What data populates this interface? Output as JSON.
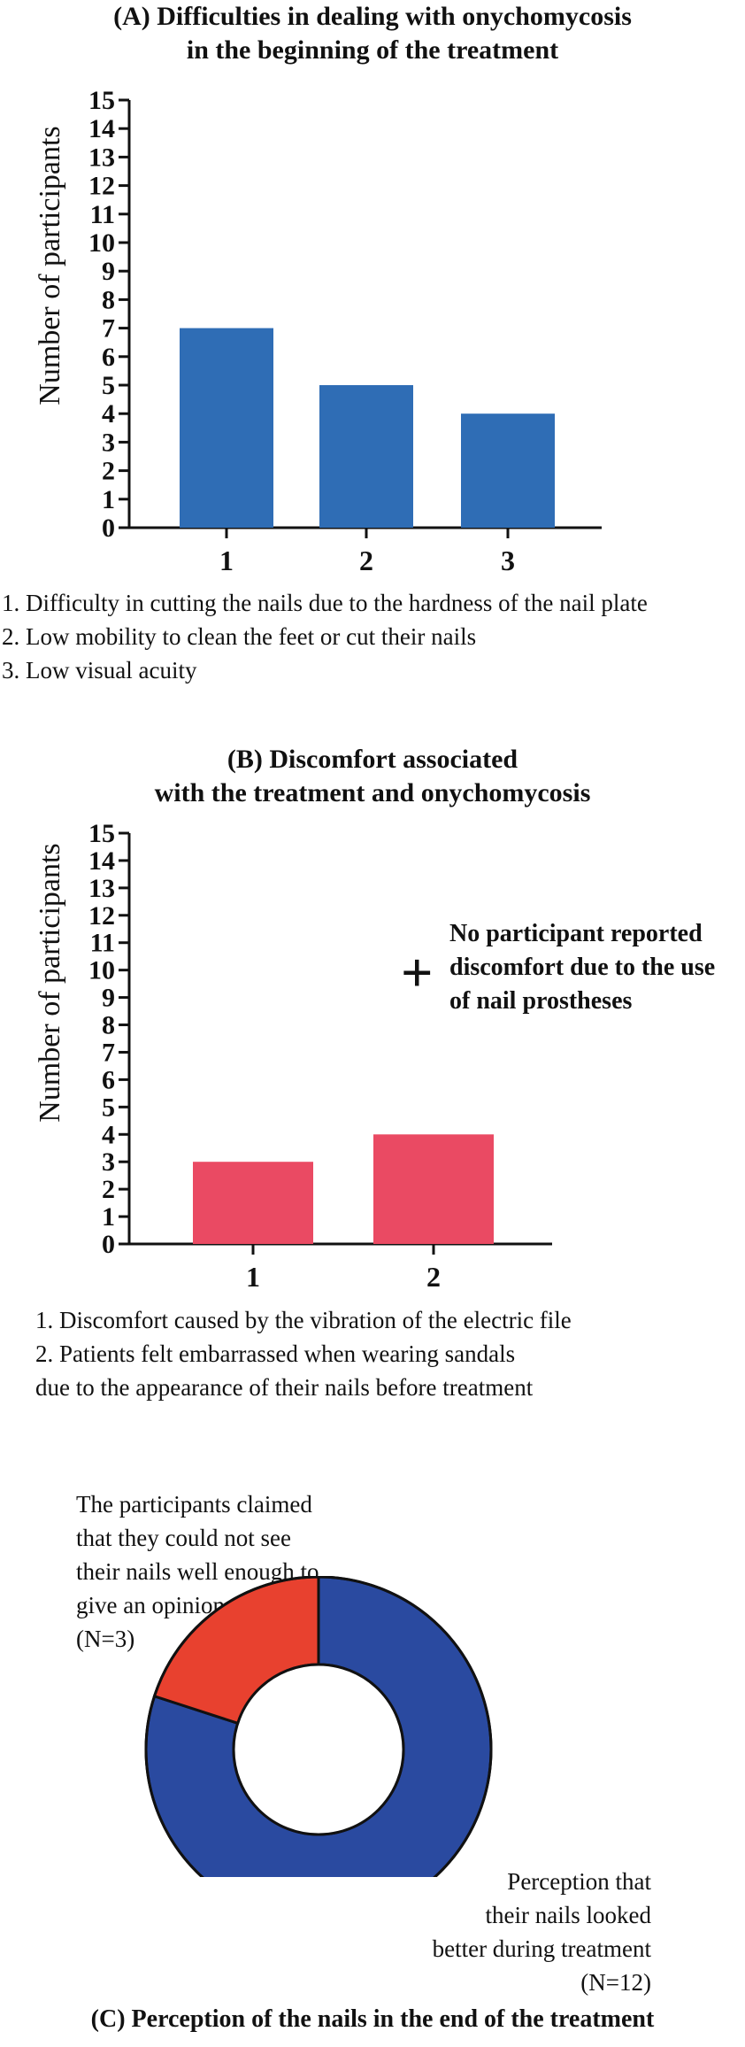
{
  "chart_data": [
    {
      "type": "bar",
      "title_line1": "(A) Difficulties in dealing with onychomycosis",
      "title_line2": "in the beginning of the treatment",
      "ylabel": "Number of participants",
      "ylim": [
        0,
        15
      ],
      "yticks": [
        0,
        1,
        2,
        3,
        4,
        5,
        6,
        7,
        8,
        9,
        10,
        11,
        12,
        13,
        14,
        15
      ],
      "categories": [
        "1",
        "2",
        "3"
      ],
      "values": [
        7,
        5,
        4
      ],
      "color": "#2f6db5",
      "legend": [
        "1. Difficulty in cutting the nails due to the hardness of the nail plate",
        "2. Low mobility to clean the feet or cut their nails",
        "3. Low visual acuity"
      ]
    },
    {
      "type": "bar",
      "title_line1": "(B) Discomfort associated",
      "title_line2": "with the treatment and onychomycosis",
      "ylabel": "Number of participants",
      "ylim": [
        0,
        15
      ],
      "yticks": [
        0,
        1,
        2,
        3,
        4,
        5,
        6,
        7,
        8,
        9,
        10,
        11,
        12,
        13,
        14,
        15
      ],
      "categories": [
        "1",
        "2"
      ],
      "values": [
        3,
        4
      ],
      "color": "#ea4a63",
      "plus_symbol": "+",
      "note_lines": [
        "No participant reported",
        "discomfort due to the use",
        "of nail prostheses"
      ],
      "legend": [
        "1. Discomfort caused by the vibration of the electric file",
        "2. Patients felt embarrassed when wearing sandals",
        "due to the appearance of their nails before treatment"
      ]
    },
    {
      "type": "pie",
      "title": "(C) Perception of the nails in the end of the treatment",
      "donut": true,
      "slices": [
        {
          "value": 3,
          "color": "#e8412f",
          "label_lines": [
            "The participants claimed",
            "that they could not see",
            "their nails well enough to",
            "give an opinion",
            "(N=3)"
          ]
        },
        {
          "value": 12,
          "color": "#2a4aa0",
          "label_lines": [
            "Perception that",
            "their nails looked",
            "better during treatment",
            "(N=12)"
          ]
        }
      ]
    }
  ]
}
